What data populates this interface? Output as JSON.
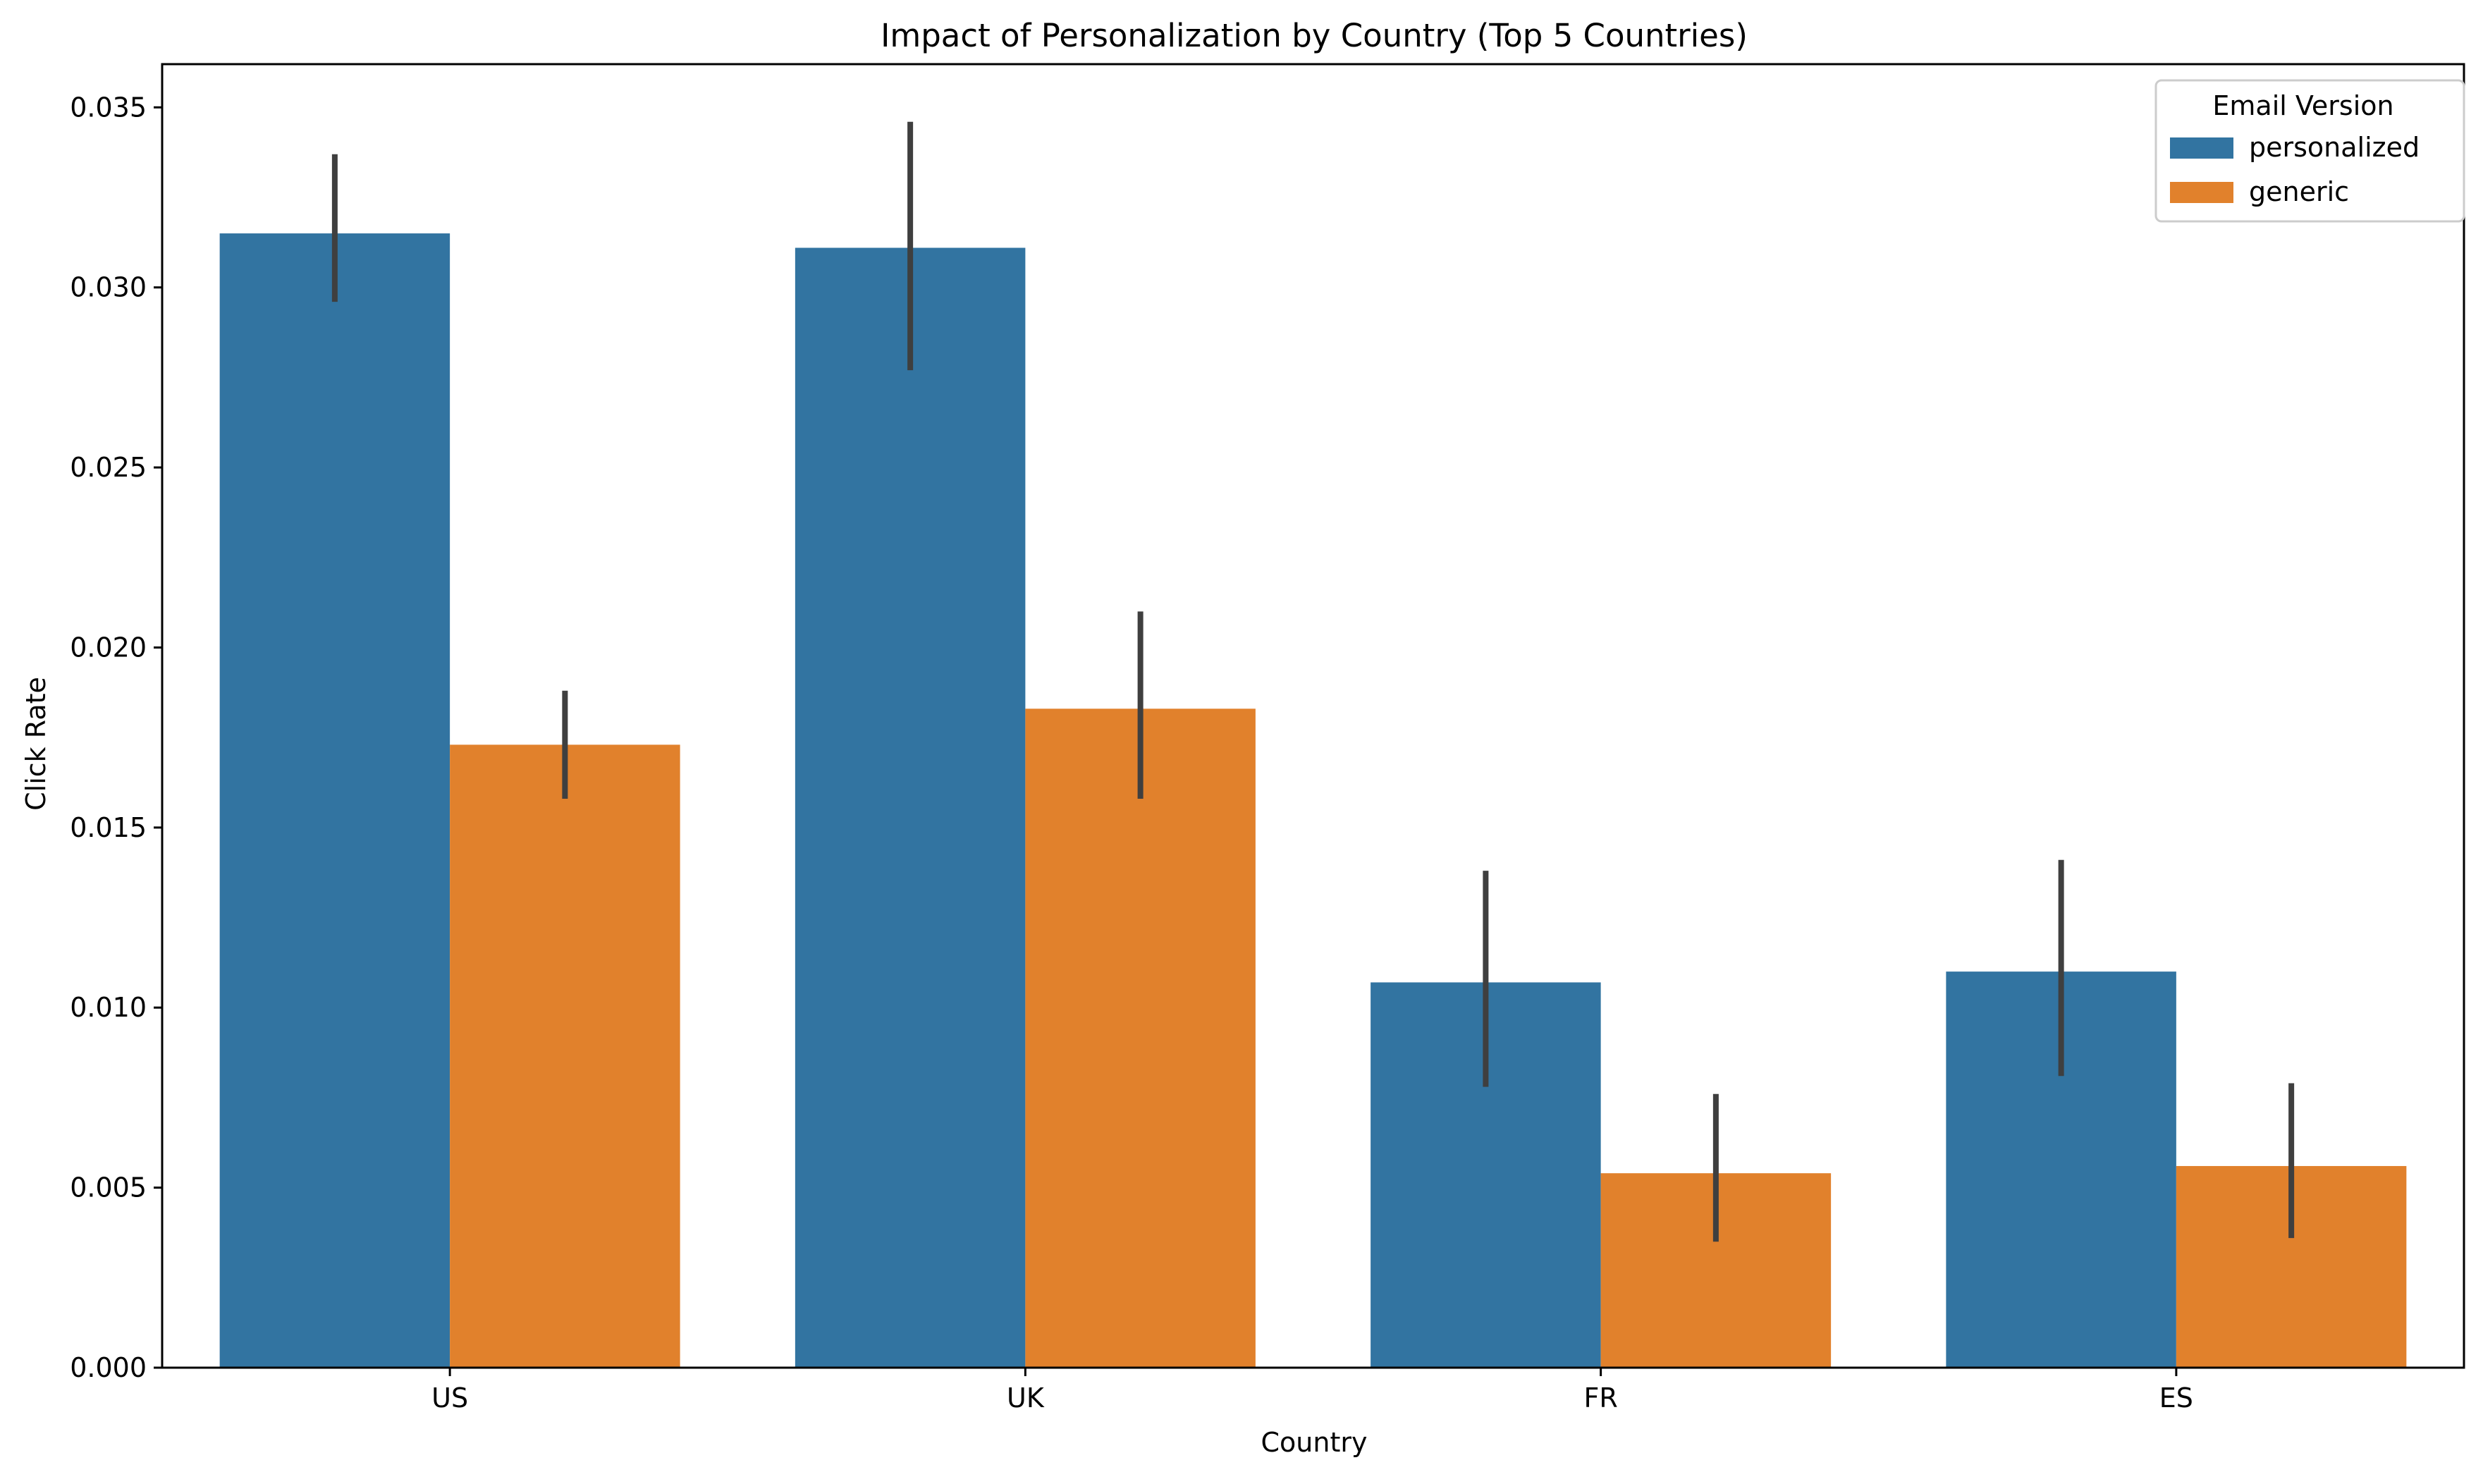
{
  "chart_data": {
    "type": "bar",
    "title": "Impact of Personalization by Country (Top 5 Countries)",
    "xlabel": "Country",
    "ylabel": "Click Rate",
    "categories": [
      "US",
      "UK",
      "FR",
      "ES"
    ],
    "ylim": [
      0,
      0.0362
    ],
    "yticks": [
      "0.000",
      "0.005",
      "0.010",
      "0.015",
      "0.020",
      "0.025",
      "0.030",
      "0.035"
    ],
    "legend": {
      "title": "Email Version",
      "placement": "top-right"
    },
    "grid": false,
    "series": [
      {
        "name": "personalized",
        "color": "#3274a1",
        "values": [
          0.0315,
          0.0311,
          0.0107,
          0.011
        ],
        "error_low": [
          0.0296,
          0.0277,
          0.0078,
          0.0081
        ],
        "error_high": [
          0.0337,
          0.0346,
          0.0138,
          0.0141
        ]
      },
      {
        "name": "generic",
        "color": "#e1812c",
        "values": [
          0.0173,
          0.0183,
          0.0054,
          0.0056
        ],
        "error_low": [
          0.0158,
          0.0158,
          0.0035,
          0.0036
        ],
        "error_high": [
          0.0188,
          0.021,
          0.0076,
          0.0079
        ]
      }
    ],
    "errorbar_color": "#3f3f3f"
  }
}
